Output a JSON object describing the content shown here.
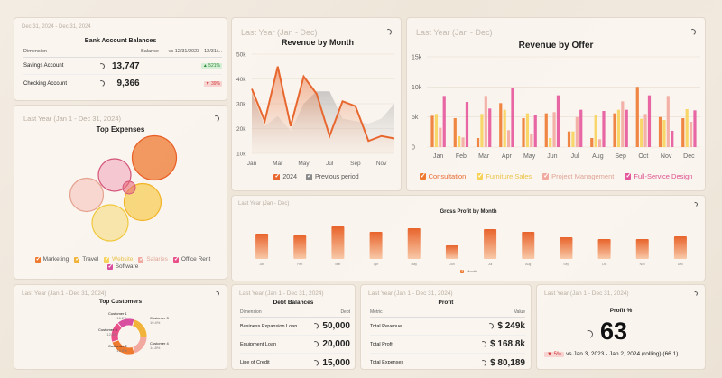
{
  "bank": {
    "subtitle": "Dec 31, 2024 - Dec 31, 2024",
    "title": "Bank Account Balances",
    "headers": [
      "Dimension",
      "Balance",
      "vs 12/31/2023 - 12/31/..."
    ],
    "rows": [
      {
        "name": "Savings Account",
        "value": "13,747",
        "badge": "▲ 521%",
        "badge_color": "#2e8b3a",
        "badge_bg": "#d6efd6"
      },
      {
        "name": "Checking Account",
        "value": "9,366",
        "badge": "▼ 39%",
        "badge_color": "#d23b3b",
        "badge_bg": "#f7d4d1"
      }
    ]
  },
  "revenue_month": {
    "subtitle": "Last Year (Jan - Dec)",
    "title": "Revenue by Month",
    "legend": [
      "2024",
      "Previous period"
    ],
    "legend_colors": [
      "#e8672f",
      "#8a8a8a"
    ]
  },
  "revenue_offer": {
    "subtitle": "Last Year (Jan - Dec)",
    "title": "Revenue by Offer",
    "legend": [
      "Consultation",
      "Furniture Sales",
      "Project Management",
      "Full-Service Design"
    ],
    "legend_colors": [
      "#ee7a30",
      "#f7d35a",
      "#f2aaa0",
      "#e4569a"
    ]
  },
  "expenses": {
    "subtitle": "Last Year (Jan 1 - Dec 31, 2024)",
    "title": "Top Expenses",
    "legend": [
      "Marketing",
      "Travel",
      "Website",
      "Salaries",
      "Office Rent",
      "Software"
    ],
    "legend_colors": [
      "#ee7a30",
      "#f2b33a",
      "#f7d35a",
      "#f2aaa0",
      "#e9508a",
      "#d94fa0"
    ]
  },
  "gross_profit": {
    "subtitle": "Last Year (Jan - Dec)",
    "title": "Gross Profit by Month",
    "legend": "Month"
  },
  "customers": {
    "subtitle": "Last Year (Jan 1 - Dec 31, 2024)",
    "title": "Top Customers",
    "labels": [
      {
        "name": "Customer 1",
        "pct": "16.2%"
      },
      {
        "name": "Customer 2",
        "pct": "15.0%"
      },
      {
        "name": "Customer 3",
        "pct": "19.4%"
      },
      {
        "name": "Customer 4",
        "pct": "14.8%"
      },
      {
        "name": "Customer 5",
        "pct": "12.3%"
      }
    ]
  },
  "debt": {
    "subtitle": "Last Year (Jan 1 - Dec 31, 2024)",
    "title": "Debt Balances",
    "headers": [
      "Dimension",
      "Debt"
    ],
    "rows": [
      {
        "name": "Business Expansion Loan",
        "value": "50,000"
      },
      {
        "name": "Equipment Loan",
        "value": "20,000"
      },
      {
        "name": "Line of Credit",
        "value": "15,000"
      }
    ]
  },
  "profit": {
    "subtitle": "Last Year (Jan 1 - Dec 31, 2024)",
    "title": "Profit",
    "headers": [
      "Metric",
      "Value"
    ],
    "rows": [
      {
        "name": "Total Revenue",
        "value": "$ 249k"
      },
      {
        "name": "Total Profit",
        "value": "$ 168.8k"
      },
      {
        "name": "Total Expenses",
        "value": "$ 80,189"
      }
    ]
  },
  "profit_pct": {
    "subtitle": "Last Year (Jan 1 - Dec 31, 2024)",
    "title": "Profit %",
    "value": "63",
    "badge": "▼ 5%",
    "comparison": "vs Jan 3, 2023 - Jan 2, 2024 (rolling) (66.1)"
  },
  "chart_data": [
    {
      "type": "area",
      "title": "Revenue by Month",
      "categories": [
        "Jan",
        "Feb",
        "Mar",
        "Apr",
        "May",
        "Jun",
        "Jul",
        "Aug",
        "Sep",
        "Oct",
        "Nov",
        "Dec"
      ],
      "x_tick_labels": [
        "Jan",
        "Mar",
        "May",
        "Jul",
        "Sep",
        "Nov"
      ],
      "y_tick_labels": [
        "10k",
        "20k",
        "30k",
        "40k",
        "50k"
      ],
      "ylim": [
        10000,
        50000
      ],
      "series": [
        {
          "name": "2024",
          "values": [
            36000,
            23000,
            45000,
            21000,
            41000,
            34000,
            17000,
            31000,
            29000,
            15000,
            17000,
            16000
          ]
        },
        {
          "name": "Previous period",
          "values": [
            34000,
            21000,
            25000,
            19000,
            30000,
            35000,
            35000,
            24000,
            23000,
            22000,
            24000,
            30000
          ]
        }
      ]
    },
    {
      "type": "bar",
      "title": "Revenue by Offer",
      "categories": [
        "Jan",
        "Feb",
        "Mar",
        "Apr",
        "May",
        "Jun",
        "Jul",
        "Aug",
        "Sep",
        "Oct",
        "Nov",
        "Dec"
      ],
      "x_tick_labels": [
        "Jan",
        "Feb",
        "Mar",
        "Apr",
        "May",
        "Jun",
        "Jul",
        "Aug",
        "Sep",
        "Oct",
        "Nov",
        "Dec"
      ],
      "y_tick_labels": [
        "0",
        "5k",
        "10k",
        "15k"
      ],
      "ylim": [
        0,
        15000
      ],
      "series": [
        {
          "name": "Consultation",
          "values": [
            5200,
            4800,
            1500,
            7300,
            4800,
            5600,
            2600,
            1500,
            5600,
            10000,
            5000,
            4800
          ]
        },
        {
          "name": "Furniture Sales",
          "values": [
            5500,
            1800,
            5500,
            6200,
            5600,
            1500,
            2600,
            5400,
            6200,
            4700,
            4500,
            6300
          ]
        },
        {
          "name": "Project Management",
          "values": [
            3200,
            1600,
            8500,
            2800,
            2200,
            5800,
            5000,
            1300,
            7600,
            5500,
            8500,
            4200
          ]
        },
        {
          "name": "Full-Service Design",
          "values": [
            8500,
            7500,
            6400,
            9900,
            5400,
            8600,
            6200,
            6000,
            6200,
            8600,
            2700,
            6100
          ]
        }
      ]
    },
    {
      "type": "bar",
      "title": "Gross Profit by Month",
      "categories": [
        "Jan",
        "Feb",
        "Mar",
        "Apr",
        "May",
        "Jun",
        "Jul",
        "Aug",
        "Sep",
        "Oct",
        "Nov",
        "Dec"
      ],
      "series": [
        {
          "name": "Month",
          "values": [
            28,
            26,
            36,
            30,
            34,
            15,
            33,
            30,
            24,
            22,
            22,
            25
          ]
        }
      ]
    },
    {
      "type": "bubble",
      "title": "Top Expenses",
      "categories": [
        "Marketing",
        "Travel",
        "Website",
        "Salaries",
        "Office Rent",
        "Software"
      ],
      "values": [
        50,
        38,
        43,
        38,
        36,
        36
      ]
    },
    {
      "type": "pie",
      "title": "Top Customers",
      "categories": [
        "Customer 1",
        "Customer 2",
        "Customer 3",
        "Customer 4",
        "Customer 5"
      ],
      "values": [
        16.2,
        15.0,
        19.4,
        14.8,
        12.3
      ]
    }
  ]
}
